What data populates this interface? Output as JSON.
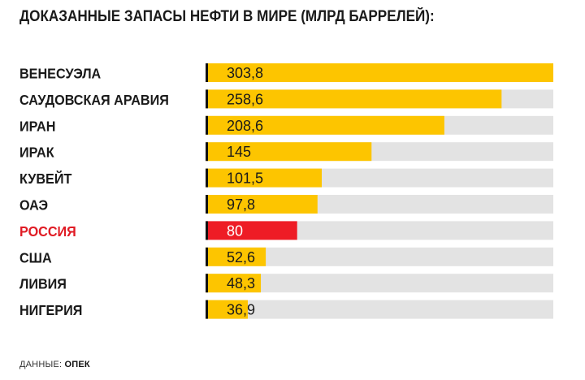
{
  "colors": {
    "bar": "#fdc500",
    "highlight": "#ee1c25",
    "track": "#e3e3e3",
    "marker": "#111111",
    "label_default": "#1a1a1a",
    "label_highlight": "#e01b24"
  },
  "chart_data": {
    "type": "bar",
    "orientation": "horizontal",
    "title": "ДОКАЗАННЫЕ ЗАПАСЫ НЕФТИ В МИРЕ (МЛРД БАРРЕЛЕЙ):",
    "categories": [
      "ВЕНЕСУЭЛА",
      "САУДОВСКАЯ АРАВИЯ",
      "ИРАН",
      "ИРАК",
      "КУВЕЙТ",
      "ОАЭ",
      "РОССИЯ",
      "США",
      "ЛИВИЯ",
      "НИГЕРИЯ"
    ],
    "values": [
      303.8,
      258.6,
      208.6,
      145,
      101.5,
      97.8,
      80,
      52.6,
      48.3,
      36.9
    ],
    "value_labels": [
      "303,8",
      "258,6",
      "208,6",
      "145",
      "101,5",
      "97,8",
      "80",
      "52,6",
      "48,3",
      "36,9"
    ],
    "highlight": "РОССИЯ",
    "xlim": [
      0,
      303.8
    ],
    "xlabel": "",
    "ylabel": ""
  },
  "source": {
    "label": "ДАННЫЕ:",
    "value": "ОПЕК"
  }
}
